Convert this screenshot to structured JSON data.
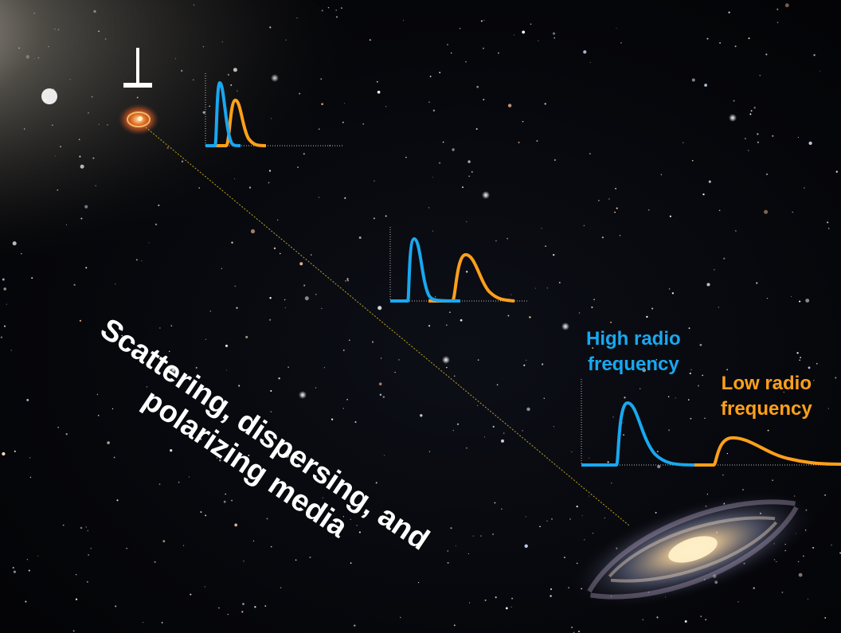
{
  "labels": {
    "high_frequency": "High radio\nfrequency",
    "low_frequency": "Low radio\nfrequency",
    "media": "Scattering, dispersing, and\npolarizing media"
  },
  "colors": {
    "high_frequency": "#19a8f0",
    "low_frequency": "#ffa01a",
    "sight_line": "#e0c020",
    "text": "#ffffff"
  },
  "icons": [
    "pulsar-marker-icon",
    "pulsar-icon",
    "host-galaxy-icon",
    "milky-way-galaxy-icon"
  ]
}
